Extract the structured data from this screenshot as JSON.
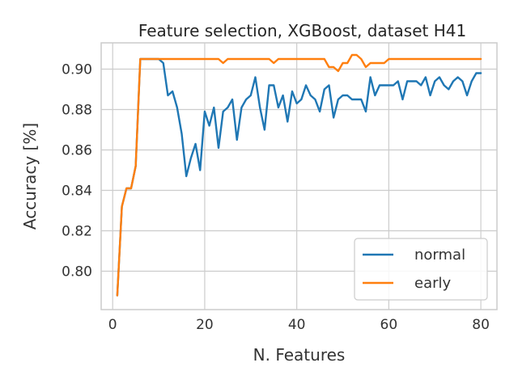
{
  "chart_data": {
    "type": "line",
    "title": "Feature selection, XGBoost, dataset H41",
    "xlabel": "N. Features",
    "ylabel": "Accuracy [%]",
    "xlim": [
      -2.5,
      83.5
    ],
    "ylim": [
      0.781,
      0.913
    ],
    "xticks": [
      0,
      20,
      40,
      60,
      80
    ],
    "yticks": [
      0.8,
      0.82,
      0.84,
      0.86,
      0.88,
      0.9
    ],
    "ytick_labels": [
      "0.80",
      "0.82",
      "0.84",
      "0.86",
      "0.88",
      "0.90"
    ],
    "grid": true,
    "legend": "lower-right",
    "series": [
      {
        "name": "normal",
        "color": "#1f77b4",
        "x": [
          1,
          2,
          3,
          4,
          5,
          6,
          7,
          8,
          9,
          10,
          11,
          12,
          13,
          14,
          15,
          16,
          17,
          18,
          19,
          20,
          21,
          22,
          23,
          24,
          25,
          26,
          27,
          28,
          29,
          30,
          31,
          32,
          33,
          34,
          35,
          36,
          37,
          38,
          39,
          40,
          41,
          42,
          43,
          44,
          45,
          46,
          47,
          48,
          49,
          50,
          51,
          52,
          53,
          54,
          55,
          56,
          57,
          58,
          59,
          60,
          61,
          62,
          63,
          64,
          65,
          66,
          67,
          68,
          69,
          70,
          71,
          72,
          73,
          74,
          75,
          76,
          77,
          78,
          79,
          80
        ],
        "y": [
          0.788,
          0.832,
          0.841,
          0.841,
          0.852,
          0.905,
          0.905,
          0.905,
          0.905,
          0.905,
          0.903,
          0.887,
          0.889,
          0.881,
          0.868,
          0.847,
          0.856,
          0.863,
          0.85,
          0.879,
          0.872,
          0.881,
          0.861,
          0.879,
          0.881,
          0.885,
          0.865,
          0.881,
          0.885,
          0.887,
          0.896,
          0.881,
          0.87,
          0.892,
          0.892,
          0.881,
          0.887,
          0.874,
          0.889,
          0.883,
          0.885,
          0.892,
          0.887,
          0.885,
          0.879,
          0.89,
          0.892,
          0.876,
          0.885,
          0.887,
          0.887,
          0.885,
          0.885,
          0.885,
          0.879,
          0.896,
          0.887,
          0.892,
          0.892,
          0.892,
          0.892,
          0.894,
          0.885,
          0.894,
          0.894,
          0.894,
          0.892,
          0.896,
          0.887,
          0.894,
          0.896,
          0.892,
          0.89,
          0.894,
          0.896,
          0.894,
          0.887,
          0.894,
          0.898,
          0.898
        ]
      },
      {
        "name": "early",
        "color": "#ff7f0e",
        "x": [
          1,
          2,
          3,
          4,
          5,
          6,
          7,
          8,
          9,
          10,
          11,
          12,
          13,
          14,
          15,
          16,
          17,
          18,
          19,
          20,
          21,
          22,
          23,
          24,
          25,
          26,
          27,
          28,
          29,
          30,
          31,
          32,
          33,
          34,
          35,
          36,
          37,
          38,
          39,
          40,
          41,
          42,
          43,
          44,
          45,
          46,
          47,
          48,
          49,
          50,
          51,
          52,
          53,
          54,
          55,
          56,
          57,
          58,
          59,
          60,
          61,
          62,
          63,
          64,
          65,
          66,
          67,
          68,
          69,
          70,
          71,
          72,
          73,
          74,
          75,
          76,
          77,
          78,
          79,
          80
        ],
        "y": [
          0.788,
          0.832,
          0.841,
          0.841,
          0.852,
          0.905,
          0.905,
          0.905,
          0.905,
          0.905,
          0.905,
          0.905,
          0.905,
          0.905,
          0.905,
          0.905,
          0.905,
          0.905,
          0.905,
          0.905,
          0.905,
          0.905,
          0.905,
          0.903,
          0.905,
          0.905,
          0.905,
          0.905,
          0.905,
          0.905,
          0.905,
          0.905,
          0.905,
          0.905,
          0.903,
          0.905,
          0.905,
          0.905,
          0.905,
          0.905,
          0.905,
          0.905,
          0.905,
          0.905,
          0.905,
          0.905,
          0.901,
          0.901,
          0.899,
          0.903,
          0.903,
          0.907,
          0.907,
          0.905,
          0.901,
          0.903,
          0.903,
          0.903,
          0.903,
          0.905,
          0.905,
          0.905,
          0.905,
          0.905,
          0.905,
          0.905,
          0.905,
          0.905,
          0.905,
          0.905,
          0.905,
          0.905,
          0.905,
          0.905,
          0.905,
          0.905,
          0.905,
          0.905,
          0.905,
          0.905
        ]
      }
    ]
  }
}
